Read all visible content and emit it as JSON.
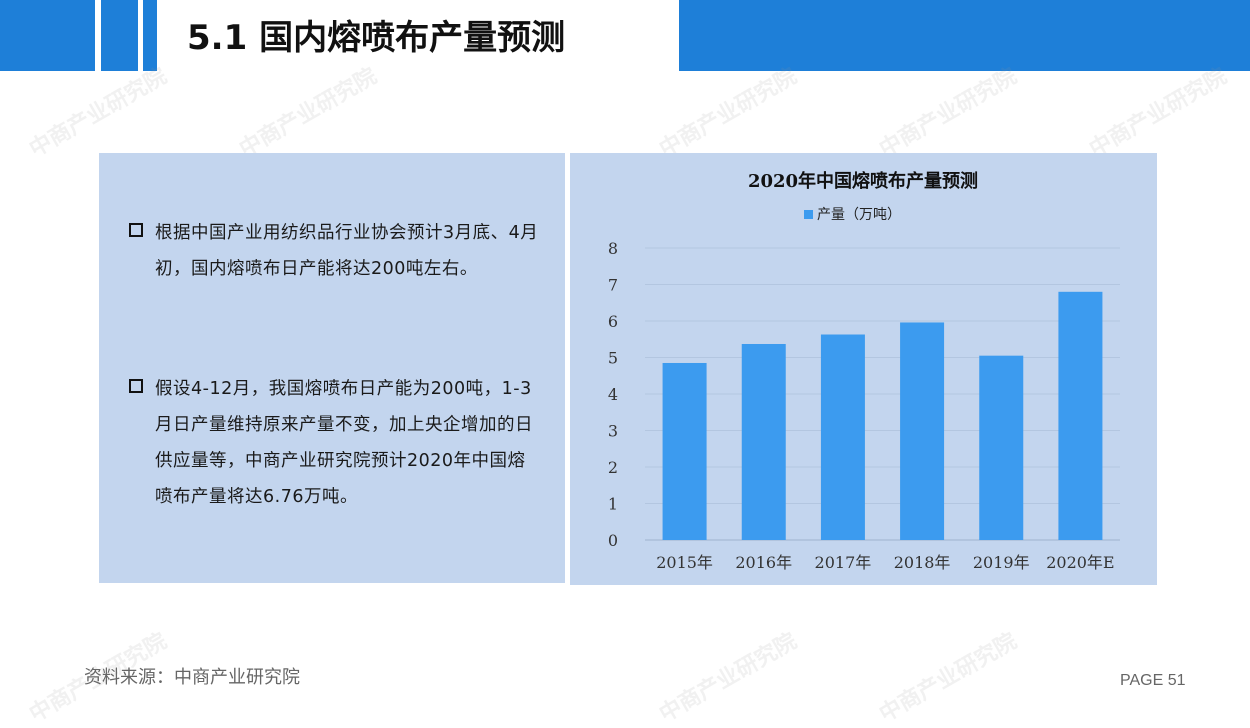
{
  "header": {
    "title": "5.1 国内熔喷布产量预测"
  },
  "bullets": [
    "根据中国产业用纺织品行业协会预计3月底、4月初，国内熔喷布日产能将达200吨左右。",
    "假设4-12月，我国熔喷布日产能为200吨，1-3月日产量维持原来产量不变，加上央企增加的日供应量等，中商产业研究院预计2020年中国熔喷布产量将达6.76万吨。"
  ],
  "chart_data": {
    "type": "bar",
    "title": "2020年中国熔喷布产量预测",
    "categories": [
      "2015年",
      "2016年",
      "2017年",
      "2018年",
      "2019年",
      "2020年E"
    ],
    "series": [
      {
        "name": "产量（万吨）",
        "values": [
          4.85,
          5.37,
          5.63,
          5.96,
          5.05,
          6.8
        ]
      }
    ],
    "ylim": [
      0,
      8
    ],
    "yticks": [
      0,
      1,
      2,
      3,
      4,
      5,
      6,
      7,
      8
    ],
    "grid": true,
    "legend": "top-center",
    "colors": {
      "bar": "#3C9BEF"
    }
  },
  "footer": {
    "source": "资料来源：中商产业研究院",
    "page": "PAGE 51"
  },
  "watermark": "中商产业研究院",
  "colors": {
    "accent": "#1E7FD8",
    "panel": "#C3D5EE"
  }
}
